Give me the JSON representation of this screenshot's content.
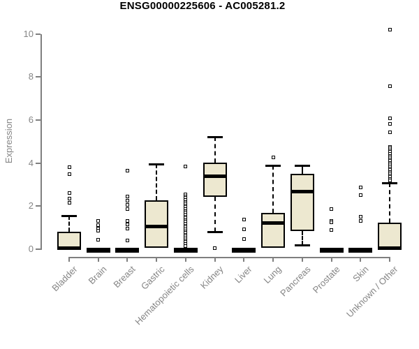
{
  "title": "ENSG00000225606 - AC005281.2",
  "chart_data": {
    "type": "boxplot",
    "title": "ENSG00000225606 - AC005281.2",
    "xlabel": "",
    "ylabel": "Expression",
    "ylim": [
      0,
      10.3
    ],
    "yticks": [
      0,
      2,
      4,
      6,
      8,
      10
    ],
    "grid": false,
    "legend": false,
    "categories": [
      "Bladder",
      "Brain",
      "Breast",
      "Gastric",
      "Hematopoietic cells",
      "Kidney",
      "Liver",
      "Lung",
      "Pancreas",
      "Prostate",
      "Skin",
      "Unknown / Other"
    ],
    "series": [
      {
        "name": "Bladder",
        "q1": 0,
        "median": 0.05,
        "q3": 0.8,
        "whisker_low": 0,
        "whisker_high": 1.55,
        "outliers": [
          3.8,
          3.5,
          2.6,
          2.35,
          2.15
        ]
      },
      {
        "name": "Brain",
        "q1": 0,
        "median": 0,
        "q3": 0.05,
        "whisker_low": 0,
        "whisker_high": 0.05,
        "outliers": [
          1.3,
          1.12,
          0.95,
          0.85,
          0.45
        ]
      },
      {
        "name": "Breast",
        "q1": 0,
        "median": 0,
        "q3": 0.05,
        "whisker_low": 0,
        "whisker_high": 0.05,
        "outliers": [
          3.65,
          2.45,
          2.25,
          2.05,
          1.85,
          1.3,
          1.15,
          0.95,
          0.4
        ]
      },
      {
        "name": "Gastric",
        "q1": 0.08,
        "median": 1.05,
        "q3": 2.27,
        "whisker_low": 0.08,
        "whisker_high": 3.97,
        "outliers": []
      },
      {
        "name": "Hematopoietic cells",
        "q1": 0,
        "median": 0,
        "q3": 0.05,
        "whisker_low": 0,
        "whisker_high": 0.05,
        "outliers": [
          3.84,
          2.54,
          2.46,
          2.37,
          2.29,
          2.2,
          2.12,
          2.03,
          1.95,
          1.86,
          1.78,
          1.69,
          1.61,
          1.52,
          1.44,
          1.35,
          1.27,
          1.18,
          1.1,
          1.01,
          0.93,
          0.84,
          0.76,
          0.67,
          0.59,
          0.5,
          0.42,
          0.33,
          0.25,
          0.16
        ]
      },
      {
        "name": "Kidney",
        "q1": 2.43,
        "median": 3.4,
        "q3": 4.03,
        "whisker_low": 0.81,
        "whisker_high": 5.22,
        "outliers": [
          0.05
        ]
      },
      {
        "name": "Liver",
        "q1": 0,
        "median": 0,
        "q3": 0.05,
        "whisker_low": 0,
        "whisker_high": 0.05,
        "outliers": [
          1.37,
          0.94,
          0.48
        ]
      },
      {
        "name": "Lung",
        "q1": 0.05,
        "median": 1.21,
        "q3": 1.7,
        "whisker_low": 0.05,
        "whisker_high": 3.9,
        "outliers": [
          4.27
        ]
      },
      {
        "name": "Pancreas",
        "q1": 0.83,
        "median": 2.66,
        "q3": 3.49,
        "whisker_low": 0.18,
        "whisker_high": 3.89,
        "outliers": []
      },
      {
        "name": "Prostate",
        "q1": 0,
        "median": 0,
        "q3": 0.05,
        "whisker_low": 0,
        "whisker_high": 0.05,
        "outliers": [
          1.85,
          1.32,
          1.25,
          0.9
        ]
      },
      {
        "name": "Skin",
        "q1": 0,
        "median": 0,
        "q3": 0.05,
        "whisker_low": 0,
        "whisker_high": 0.05,
        "outliers": [
          2.87,
          2.5,
          1.51,
          1.3
        ]
      },
      {
        "name": "Unknown / Other",
        "q1": 0,
        "median": 0.05,
        "q3": 1.24,
        "whisker_low": 0,
        "whisker_high": 3.08,
        "outliers": [
          10.21,
          7.56,
          6.07,
          5.83,
          5.42,
          4.76,
          4.68,
          4.59,
          4.51,
          4.43,
          4.34,
          4.26,
          4.18,
          4.09,
          4.01,
          3.93,
          3.84,
          3.76,
          3.68,
          3.59,
          3.51,
          3.43,
          3.34,
          3.26,
          3.19
        ]
      }
    ],
    "colors": {
      "box_fill": "#EDE8D0",
      "box_border": "#000000",
      "median": "#000000",
      "axis": "#7f7f7f",
      "tick_label": "#858585",
      "title": "#000000",
      "background": "#ffffff"
    }
  }
}
